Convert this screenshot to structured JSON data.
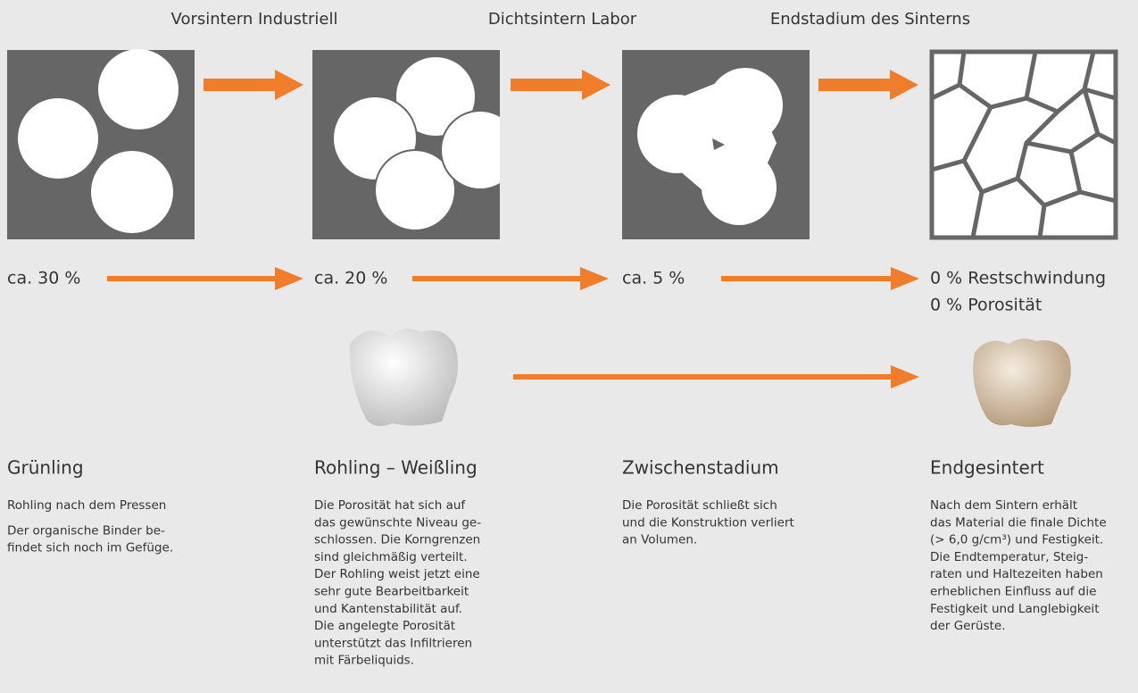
{
  "stages": [
    "Vorsintern Industriell",
    "Dichtsintern Labor",
    "Endstadium des Sinterns"
  ],
  "shrinkage": [
    "ca. 30 %",
    "ca. 20 %",
    "ca. 5 %"
  ],
  "final": [
    "0 % Restschwindung",
    "0 % Porosität"
  ],
  "columns": [
    {
      "title": "Grünling",
      "paragraphs": [
        [
          "Rohling nach dem Pressen"
        ],
        [
          "Der organische Binder be-",
          "findet sich noch im Gefüge."
        ]
      ]
    },
    {
      "title": "Rohling – Weißling",
      "paragraphs": [
        [
          "Die Porosität hat sich auf",
          "das gewünschte Niveau ge-",
          "schlossen. Die Korngrenzen",
          "sind gleichmäßig verteilt.",
          "Der Rohling weist jetzt eine",
          "sehr gute Bearbeitbarkeit",
          "und Kantenstabilität auf.",
          "Die angelegte Porosität",
          "unterstützt das Infiltrieren",
          "mit Färbeliquids."
        ]
      ]
    },
    {
      "title": "Zwischenstadium",
      "paragraphs": [
        [
          "Die Porosität schließt sich",
          "und die Konstruktion verliert",
          "an Volumen."
        ]
      ]
    },
    {
      "title": "Endgesintert",
      "paragraphs": [
        [
          "Nach dem Sintern erhält",
          "das Material die finale Dichte",
          "(> 6,0 g/cm³) und Festigkeit.",
          "Die Endtemperatur, Steig-",
          "raten und Haltezeiten haben",
          "erheblichen Einfluss auf die",
          "Festigkeit und Langlebigkeit",
          "der Gerüste."
        ]
      ]
    }
  ]
}
